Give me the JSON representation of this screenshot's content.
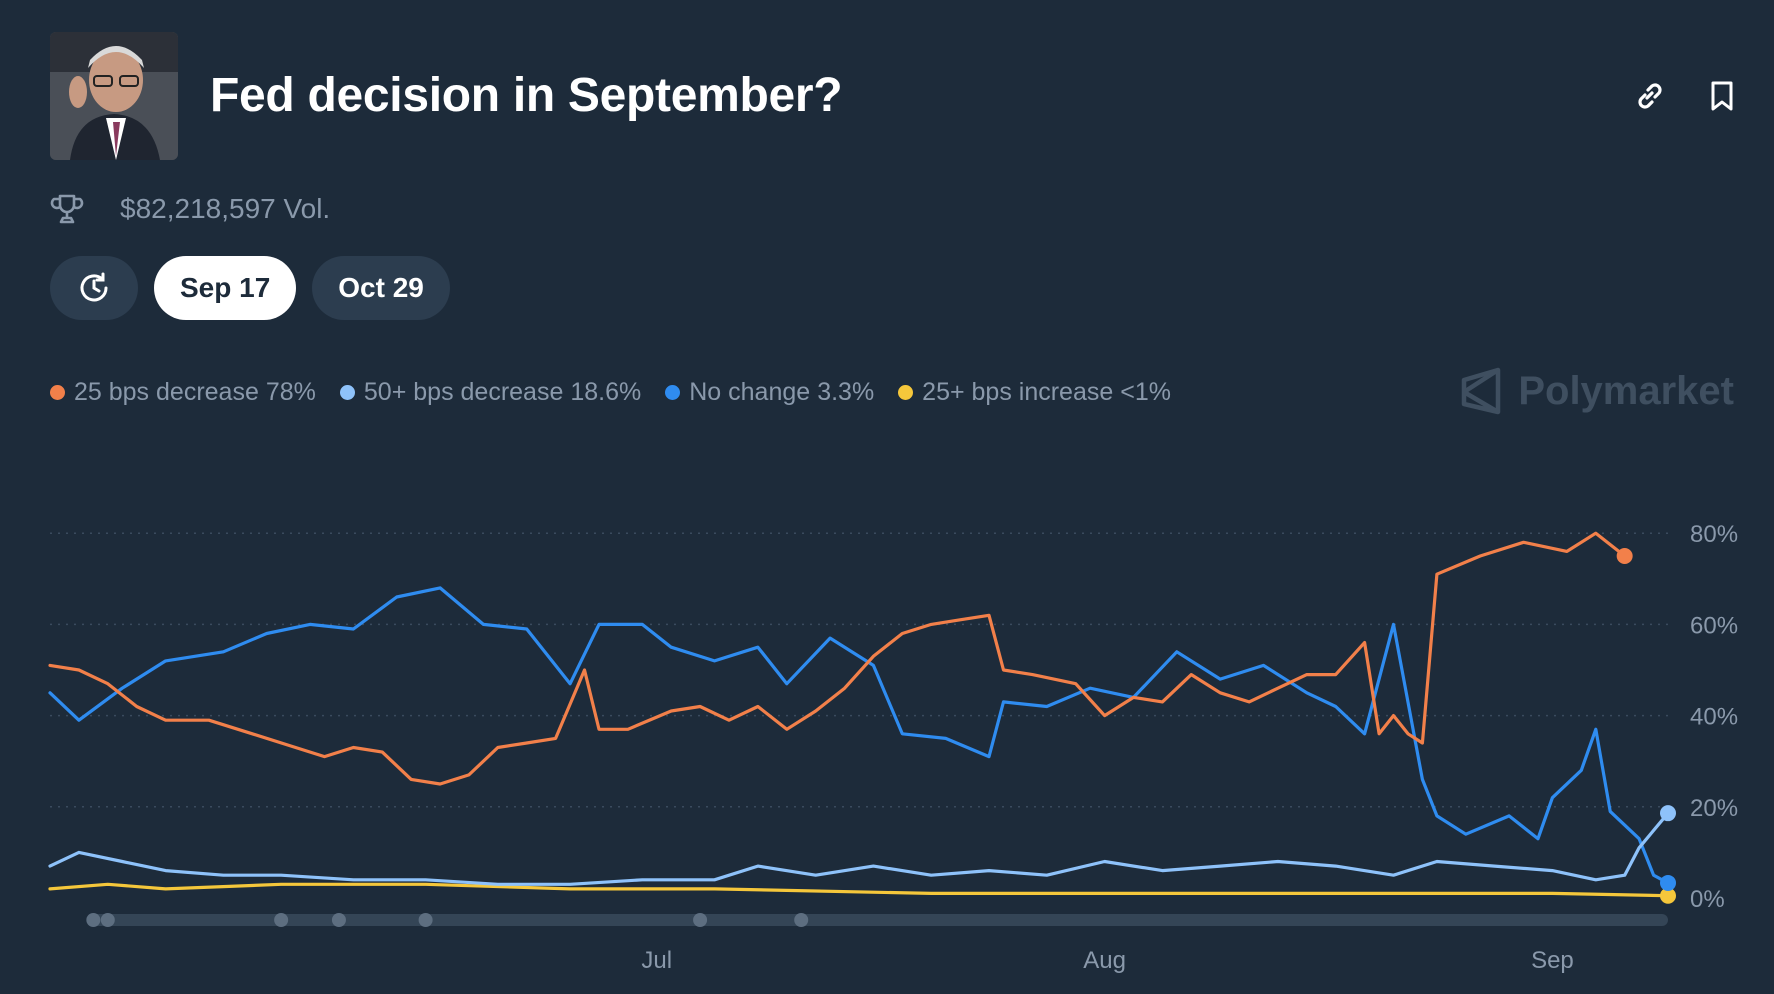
{
  "header": {
    "title": "Fed decision in September?",
    "avatar_icon": "portrait-photo",
    "share_icon": "link-icon",
    "bookmark_icon": "bookmark-icon"
  },
  "volume": {
    "icon": "trophy-icon",
    "text": "$82,218,597 Vol."
  },
  "date_tabs": [
    {
      "label": "Sep 17",
      "active": true
    },
    {
      "label": "Oct 29",
      "active": false
    }
  ],
  "history_icon": "history-clock-icon",
  "brand": {
    "name": "Polymarket",
    "icon": "polymarket-logo"
  },
  "colors": {
    "background": "#1d2b3a",
    "series_25_decrease": "#f2804a",
    "series_50_decrease": "#8ec2fa",
    "series_no_change": "#2f8cf0",
    "series_25_increase": "#f5c73b"
  },
  "chart_data": {
    "type": "line",
    "yticks": [
      "80%",
      "60%",
      "40%",
      "20%",
      "0%"
    ],
    "xticks": [
      {
        "label": "Jul",
        "x": "2024-07-01"
      },
      {
        "label": "Aug",
        "x": "2024-08-01"
      },
      {
        "label": "Sep",
        "x": "2024-09-01"
      }
    ],
    "ylim": [
      0,
      100
    ],
    "xlim": [
      "2024-05-20",
      "2024-09-09"
    ],
    "grid": true,
    "legend_position": "top-left",
    "series": [
      {
        "name": "25 bps decrease",
        "value_label": "78%",
        "color": "#f2804a",
        "points": [
          [
            "2024-05-20",
            51
          ],
          [
            "2024-05-22",
            50
          ],
          [
            "2024-05-24",
            47
          ],
          [
            "2024-05-26",
            42
          ],
          [
            "2024-05-28",
            39
          ],
          [
            "2024-05-31",
            39
          ],
          [
            "2024-06-03",
            36
          ],
          [
            "2024-06-06",
            33
          ],
          [
            "2024-06-08",
            31
          ],
          [
            "2024-06-10",
            33
          ],
          [
            "2024-06-12",
            32
          ],
          [
            "2024-06-14",
            26
          ],
          [
            "2024-06-16",
            25
          ],
          [
            "2024-06-18",
            27
          ],
          [
            "2024-06-20",
            33
          ],
          [
            "2024-06-22",
            34
          ],
          [
            "2024-06-24",
            35
          ],
          [
            "2024-06-26",
            50
          ],
          [
            "2024-06-27",
            37
          ],
          [
            "2024-06-29",
            37
          ],
          [
            "2024-07-02",
            41
          ],
          [
            "2024-07-04",
            42
          ],
          [
            "2024-07-06",
            39
          ],
          [
            "2024-07-08",
            42
          ],
          [
            "2024-07-10",
            37
          ],
          [
            "2024-07-12",
            41
          ],
          [
            "2024-07-14",
            46
          ],
          [
            "2024-07-16",
            53
          ],
          [
            "2024-07-18",
            58
          ],
          [
            "2024-07-20",
            60
          ],
          [
            "2024-07-22",
            61
          ],
          [
            "2024-07-24",
            62
          ],
          [
            "2024-07-25",
            50
          ],
          [
            "2024-07-27",
            49
          ],
          [
            "2024-07-30",
            47
          ],
          [
            "2024-08-01",
            40
          ],
          [
            "2024-08-03",
            44
          ],
          [
            "2024-08-05",
            43
          ],
          [
            "2024-08-07",
            49
          ],
          [
            "2024-08-09",
            45
          ],
          [
            "2024-08-11",
            43
          ],
          [
            "2024-08-13",
            46
          ],
          [
            "2024-08-15",
            49
          ],
          [
            "2024-08-17",
            49
          ],
          [
            "2024-08-19",
            56
          ],
          [
            "2024-08-21",
            40
          ],
          [
            "2024-08-23",
            34
          ],
          [
            "2024-08-24",
            71
          ],
          [
            "2024-08-27",
            75
          ],
          [
            "2024-08-30",
            78
          ],
          [
            "2024-09-02",
            76
          ],
          [
            "2024-09-04",
            80
          ],
          [
            "2024-09-06",
            75
          ],
          [
            "2024-08-20",
            36
          ],
          [
            "2024-08-22",
            36
          ]
        ]
      },
      {
        "name": "50+ bps decrease",
        "value_label": "18.6%",
        "color": "#8ec2fa",
        "points": [
          [
            "2024-05-20",
            7
          ],
          [
            "2024-05-22",
            10
          ],
          [
            "2024-05-25",
            8
          ],
          [
            "2024-05-28",
            6
          ],
          [
            "2024-06-01",
            5
          ],
          [
            "2024-06-05",
            5
          ],
          [
            "2024-06-10",
            4
          ],
          [
            "2024-06-15",
            4
          ],
          [
            "2024-06-20",
            3
          ],
          [
            "2024-06-25",
            3
          ],
          [
            "2024-06-30",
            4
          ],
          [
            "2024-07-05",
            4
          ],
          [
            "2024-07-08",
            7
          ],
          [
            "2024-07-12",
            5
          ],
          [
            "2024-07-16",
            7
          ],
          [
            "2024-07-20",
            5
          ],
          [
            "2024-07-24",
            6
          ],
          [
            "2024-07-28",
            5
          ],
          [
            "2024-08-01",
            8
          ],
          [
            "2024-08-05",
            6
          ],
          [
            "2024-08-09",
            7
          ],
          [
            "2024-08-13",
            8
          ],
          [
            "2024-08-17",
            7
          ],
          [
            "2024-08-21",
            5
          ],
          [
            "2024-08-24",
            8
          ],
          [
            "2024-08-28",
            7
          ],
          [
            "2024-09-01",
            6
          ],
          [
            "2024-09-04",
            4
          ],
          [
            "2024-09-06",
            5
          ],
          [
            "2024-09-07",
            11
          ],
          [
            "2024-09-09",
            18.6
          ]
        ]
      },
      {
        "name": "No change",
        "value_label": "3.3%",
        "color": "#2f8cf0",
        "points": [
          [
            "2024-05-20",
            45
          ],
          [
            "2024-05-22",
            39
          ],
          [
            "2024-05-25",
            46
          ],
          [
            "2024-05-28",
            52
          ],
          [
            "2024-06-01",
            54
          ],
          [
            "2024-06-04",
            58
          ],
          [
            "2024-06-07",
            60
          ],
          [
            "2024-06-10",
            59
          ],
          [
            "2024-06-13",
            66
          ],
          [
            "2024-06-16",
            68
          ],
          [
            "2024-06-19",
            60
          ],
          [
            "2024-06-22",
            59
          ],
          [
            "2024-06-25",
            47
          ],
          [
            "2024-06-27",
            60
          ],
          [
            "2024-06-30",
            60
          ],
          [
            "2024-07-02",
            55
          ],
          [
            "2024-07-05",
            52
          ],
          [
            "2024-07-08",
            55
          ],
          [
            "2024-07-10",
            47
          ],
          [
            "2024-07-13",
            57
          ],
          [
            "2024-07-16",
            51
          ],
          [
            "2024-07-18",
            36
          ],
          [
            "2024-07-21",
            35
          ],
          [
            "2024-07-24",
            31
          ],
          [
            "2024-07-25",
            43
          ],
          [
            "2024-07-28",
            42
          ],
          [
            "2024-07-31",
            46
          ],
          [
            "2024-08-03",
            44
          ],
          [
            "2024-08-06",
            54
          ],
          [
            "2024-08-09",
            48
          ],
          [
            "2024-08-12",
            51
          ],
          [
            "2024-08-15",
            45
          ],
          [
            "2024-08-17",
            42
          ],
          [
            "2024-08-19",
            36
          ],
          [
            "2024-08-21",
            60
          ],
          [
            "2024-08-23",
            26
          ],
          [
            "2024-08-24",
            18
          ],
          [
            "2024-08-26",
            14
          ],
          [
            "2024-08-29",
            18
          ],
          [
            "2024-08-31",
            13
          ],
          [
            "2024-09-01",
            22
          ],
          [
            "2024-09-03",
            28
          ],
          [
            "2024-09-04",
            37
          ],
          [
            "2024-09-05",
            19
          ],
          [
            "2024-09-07",
            13
          ],
          [
            "2024-09-08",
            5
          ],
          [
            "2024-09-09",
            3.3
          ]
        ]
      },
      {
        "name": "25+ bps increase",
        "value_label": "<1%",
        "color": "#f5c73b",
        "points": [
          [
            "2024-05-20",
            2
          ],
          [
            "2024-05-24",
            3
          ],
          [
            "2024-05-28",
            2
          ],
          [
            "2024-06-05",
            3
          ],
          [
            "2024-06-15",
            3
          ],
          [
            "2024-06-25",
            2
          ],
          [
            "2024-07-05",
            2
          ],
          [
            "2024-07-20",
            1
          ],
          [
            "2024-08-05",
            1
          ],
          [
            "2024-08-20",
            1
          ],
          [
            "2024-09-01",
            1
          ],
          [
            "2024-09-09",
            0.5
          ]
        ]
      }
    ],
    "timeline_markers": [
      "2024-05-23",
      "2024-05-24",
      "2024-06-05",
      "2024-06-09",
      "2024-06-15",
      "2024-07-04",
      "2024-07-11"
    ]
  }
}
